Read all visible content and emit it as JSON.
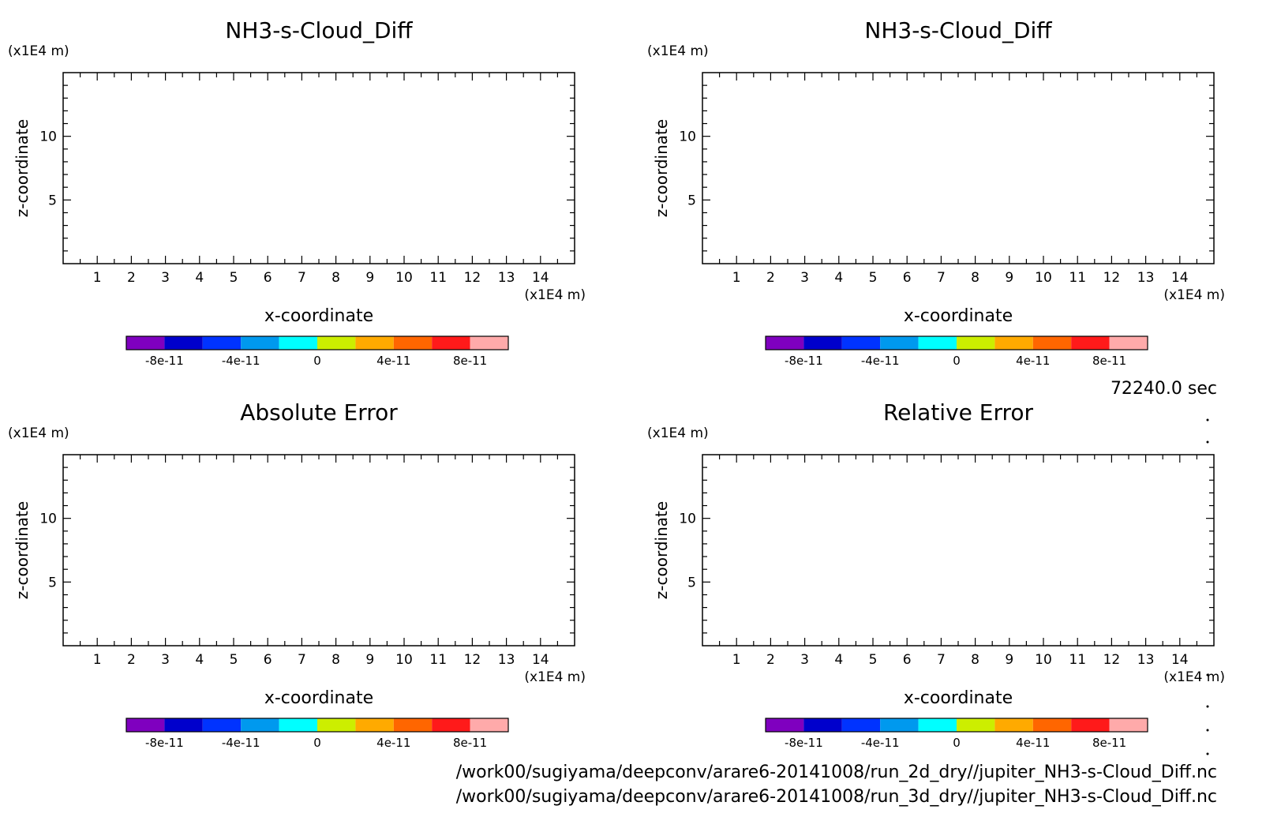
{
  "time_label": "72240.0 sec",
  "footer": {
    "lines": [
      "/work00/sugiyama/deepconv/arare6-20141008/run_2d_dry//jupiter_NH3-s-Cloud_Diff.nc",
      "/work00/sugiyama/deepconv/arare6-20141008/run_3d_dry//jupiter_NH3-s-Cloud_Diff.nc"
    ]
  },
  "colorbar": {
    "colors": [
      "#7f00bf",
      "#0000cc",
      "#0033ff",
      "#0099ee",
      "#00ffff",
      "#ccee00",
      "#ffaa00",
      "#ff6600",
      "#ff1a1a",
      "#ffaaaa"
    ],
    "tick_labels": [
      "-8e-11",
      "-4e-11",
      "0",
      "4e-11",
      "8e-11"
    ]
  },
  "chart_data": [
    {
      "type": "heatmap",
      "title": "NH3-s-Cloud_Diff",
      "xlabel": "x-coordinate",
      "ylabel": "z-coordinate",
      "x_unit": "(x1E4 m)",
      "y_unit": "(x1E4 m)",
      "xlim": [
        0,
        15
      ],
      "ylim": [
        0,
        15
      ],
      "x_ticks": [
        1,
        2,
        3,
        4,
        5,
        6,
        7,
        8,
        9,
        10,
        11,
        12,
        13,
        14
      ],
      "y_ticks": [
        5,
        10
      ],
      "values": []
    },
    {
      "type": "heatmap",
      "title": "NH3-s-Cloud_Diff",
      "xlabel": "x-coordinate",
      "ylabel": "z-coordinate",
      "x_unit": "(x1E4 m)",
      "y_unit": "(x1E4 m)",
      "xlim": [
        0,
        15
      ],
      "ylim": [
        0,
        15
      ],
      "x_ticks": [
        1,
        2,
        3,
        4,
        5,
        6,
        7,
        8,
        9,
        10,
        11,
        12,
        13,
        14
      ],
      "y_ticks": [
        5,
        10
      ],
      "values": []
    },
    {
      "type": "heatmap",
      "title": "Absolute Error",
      "xlabel": "x-coordinate",
      "ylabel": "z-coordinate",
      "x_unit": "(x1E4 m)",
      "y_unit": "(x1E4 m)",
      "xlim": [
        0,
        15
      ],
      "ylim": [
        0,
        15
      ],
      "x_ticks": [
        1,
        2,
        3,
        4,
        5,
        6,
        7,
        8,
        9,
        10,
        11,
        12,
        13,
        14
      ],
      "y_ticks": [
        5,
        10
      ],
      "values": []
    },
    {
      "type": "heatmap",
      "title": "Relative Error",
      "xlabel": "x-coordinate",
      "ylabel": "z-coordinate",
      "x_unit": "(x1E4 m)",
      "y_unit": "(x1E4 m)",
      "xlim": [
        0,
        15
      ],
      "ylim": [
        0,
        15
      ],
      "x_ticks": [
        1,
        2,
        3,
        4,
        5,
        6,
        7,
        8,
        9,
        10,
        11,
        12,
        13,
        14
      ],
      "y_ticks": [
        5,
        10
      ],
      "values": []
    }
  ]
}
